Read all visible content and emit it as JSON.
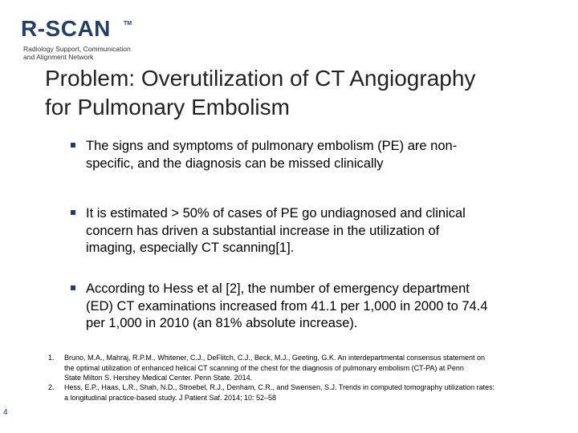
{
  "logo": {
    "wordmark": "R-SCAN",
    "tm": "TM",
    "tagline_lines": [
      "Radiology Support, Communication",
      "and Alignment Network"
    ]
  },
  "title_lines": [
    "Problem: Overutilization of CT Angiography",
    "for Pulmonary Embolism"
  ],
  "bullets": [
    {
      "lines": [
        "The signs and symptoms of pulmonary embolism (PE) are non-",
        "specific, and the diagnosis can be missed clinically"
      ]
    },
    {
      "lines": [
        "It is estimated > 50% of cases of PE go undiagnosed  and clinical",
        "concern has driven a substantial increase in the utilization of",
        "imaging, especially CT scanning[1]."
      ]
    },
    {
      "lines": [
        "According to Hess et al [2], the number of emergency department",
        "(ED) CT examinations increased from 41.1 per 1,000 in 2000 to 74.4",
        "per 1,000 in 2010 (an 81% absolute increase)."
      ]
    }
  ],
  "references": [
    {
      "num": "1.",
      "lines": [
        "Bruno, M.A., Mahraj, R.P.M., Whitener, C.J., DeFlitch, C.J., Beck, M.J., Geeting, G.K. An interdepartmental consensus statement on",
        "the optimal utilization of enhanced helical CT scanning of the chest for the diagnosis of pulmonary embolism (CT-PA) at Penn",
        "State Milton S. Hershey Medical Center. Penn State. 2014."
      ]
    },
    {
      "num": "2.",
      "lines": [
        "Hess, E.P., Haas, L.R., Shah, N.D., Stroebel, R.J., Denham, C.R., and Swensen, S.J. Trends in computed tomography utilization rates:",
        "a longitudinal practice-based study. J Patient Saf. 2014; 10: 52–58"
      ]
    }
  ],
  "page_number": "4",
  "colors": {
    "brand": "#1f3f6e"
  }
}
